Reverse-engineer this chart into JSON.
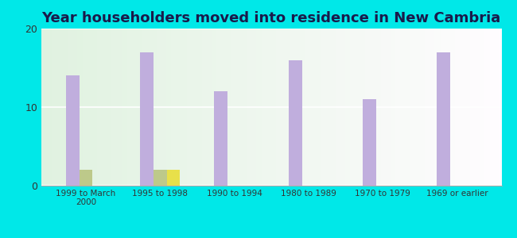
{
  "title": "Year householders moved into residence in New Cambria",
  "categories": [
    "1999 to March\n2000",
    "1995 to 1998",
    "1990 to 1994",
    "1980 to 1989",
    "1970 to 1979",
    "1969 or earlier"
  ],
  "series": {
    "White Non-Hispanic": [
      14,
      17,
      12,
      16,
      11,
      17
    ],
    "Two or More Races": [
      2,
      2,
      0,
      0,
      0,
      0
    ],
    "Hispanic or Latino": [
      0,
      2,
      0,
      0,
      0,
      0
    ]
  },
  "colors": {
    "White Non-Hispanic": "#c0aedd",
    "Two or More Races": "#bdc98a",
    "Hispanic or Latino": "#e8e04a"
  },
  "ylim": [
    0,
    20
  ],
  "yticks": [
    0,
    10,
    20
  ],
  "background_color": "#00e8e8",
  "title_fontsize": 13,
  "title_color": "#1a1a4a",
  "bar_width": 0.18,
  "legend_marker_size": 10
}
